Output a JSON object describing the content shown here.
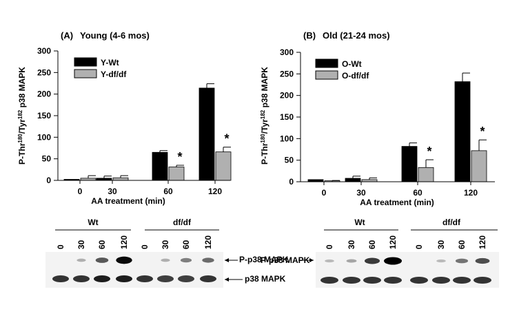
{
  "chart_data": [
    {
      "type": "bar",
      "panel_label": "(A)",
      "title": "Young (4-6 mos)",
      "xlabel": "AA treatment (min)",
      "ylabel_parts": [
        "P-Thr",
        "180",
        "/Tyr",
        "182",
        " p38 MAPK"
      ],
      "categories": [
        "0",
        "30",
        "60",
        "120"
      ],
      "ylim": [
        0,
        300
      ],
      "yticks": [
        "0",
        "50",
        "100",
        "150",
        "200",
        "250",
        "300"
      ],
      "series": [
        {
          "name": "Y-Wt",
          "color": "#000000",
          "values": [
            2,
            5,
            65,
            214
          ],
          "errors": [
            0,
            5,
            4,
            10
          ]
        },
        {
          "name": "Y-df/df",
          "color": "#b0b0b0",
          "values": [
            5,
            6,
            31,
            66
          ],
          "errors": [
            6,
            5,
            4,
            11
          ]
        }
      ],
      "significance": [
        "",
        "",
        "*",
        "*"
      ]
    },
    {
      "type": "bar",
      "panel_label": "(B)",
      "title": "Old (21-24 mos)",
      "xlabel": "AA treatment (min)",
      "ylabel_parts": [
        "P-Thr",
        "180",
        "/Tyr",
        "182",
        " p38 MAPK"
      ],
      "categories": [
        "0",
        "30",
        "60",
        "120"
      ],
      "ylim": [
        0,
        300
      ],
      "yticks": [
        "0",
        "50",
        "100",
        "150",
        "200",
        "250",
        "300"
      ],
      "series": [
        {
          "name": "O-Wt",
          "color": "#000000",
          "values": [
            5,
            8,
            82,
            232
          ],
          "errors": [
            0,
            5,
            8,
            20
          ]
        },
        {
          "name": "O-df/df",
          "color": "#b0b0b0",
          "values": [
            1,
            5,
            33,
            72
          ],
          "errors": [
            2,
            4,
            18,
            25
          ]
        }
      ],
      "significance": [
        "",
        "",
        "*",
        "*"
      ]
    }
  ],
  "blots": [
    {
      "groups": [
        "Wt",
        "df/df"
      ],
      "lanes": [
        "0",
        "30",
        "60",
        "120",
        "0",
        "30",
        "60",
        "120"
      ],
      "band_labels": [
        "P-p38 MAPK",
        "p38 MAPK"
      ],
      "p_intensity": [
        0,
        0.1,
        0.55,
        0.95,
        0,
        0.1,
        0.35,
        0.45
      ],
      "total_intensity": [
        0.85,
        0.85,
        0.95,
        0.95,
        0.85,
        0.8,
        0.8,
        0.85
      ]
    },
    {
      "groups": [
        "Wt",
        "df/df"
      ],
      "lanes": [
        "0",
        "30",
        "60",
        "120",
        "0",
        "30",
        "60",
        "120"
      ],
      "band_labels": [
        "P-p38 MAPK",
        "p38 MAPK"
      ],
      "p_intensity": [
        0.05,
        0.15,
        0.7,
        1.0,
        0,
        0.05,
        0.4,
        0.6
      ],
      "total_intensity": [
        0.85,
        0.85,
        0.85,
        0.85,
        0.85,
        0.85,
        0.85,
        0.85
      ]
    }
  ]
}
